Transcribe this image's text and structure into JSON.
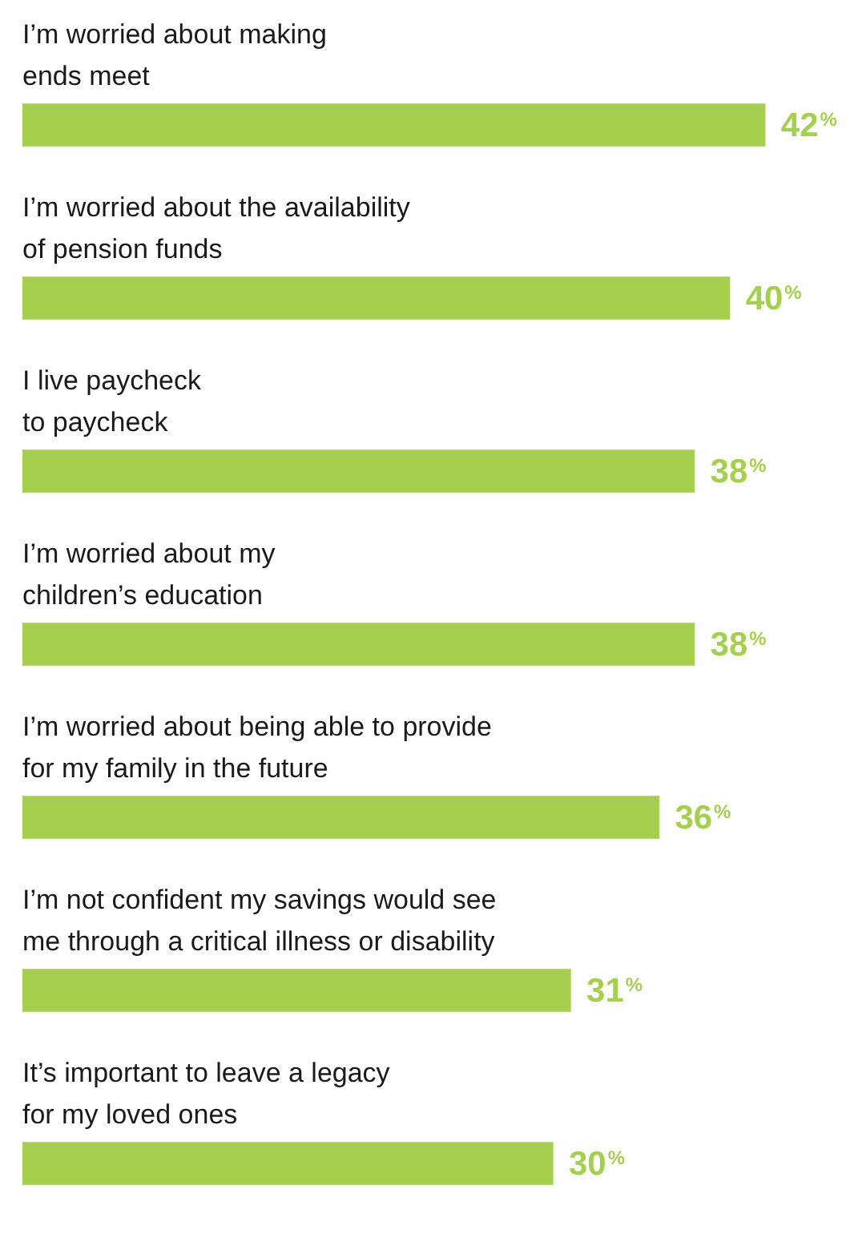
{
  "chart_data": {
    "type": "bar",
    "orientation": "horizontal",
    "categories": [
      "I’m worried about making\nends meet",
      "I’m worried about the availability\nof pension funds",
      "I live paycheck\nto paycheck",
      "I’m worried about my\nchildren’s education",
      "I’m worried about being able to provide\nfor my family in the future",
      "I’m not confident my savings would see\nme through a critical illness or disability",
      "It’s important to leave a legacy\nfor my loved ones"
    ],
    "values": [
      42,
      40,
      38,
      38,
      36,
      31,
      30
    ],
    "value_labels": [
      "42%",
      "40%",
      "38%",
      "38%",
      "36%",
      "31%",
      "30%"
    ],
    "color": "#a5cf4f"
  }
}
